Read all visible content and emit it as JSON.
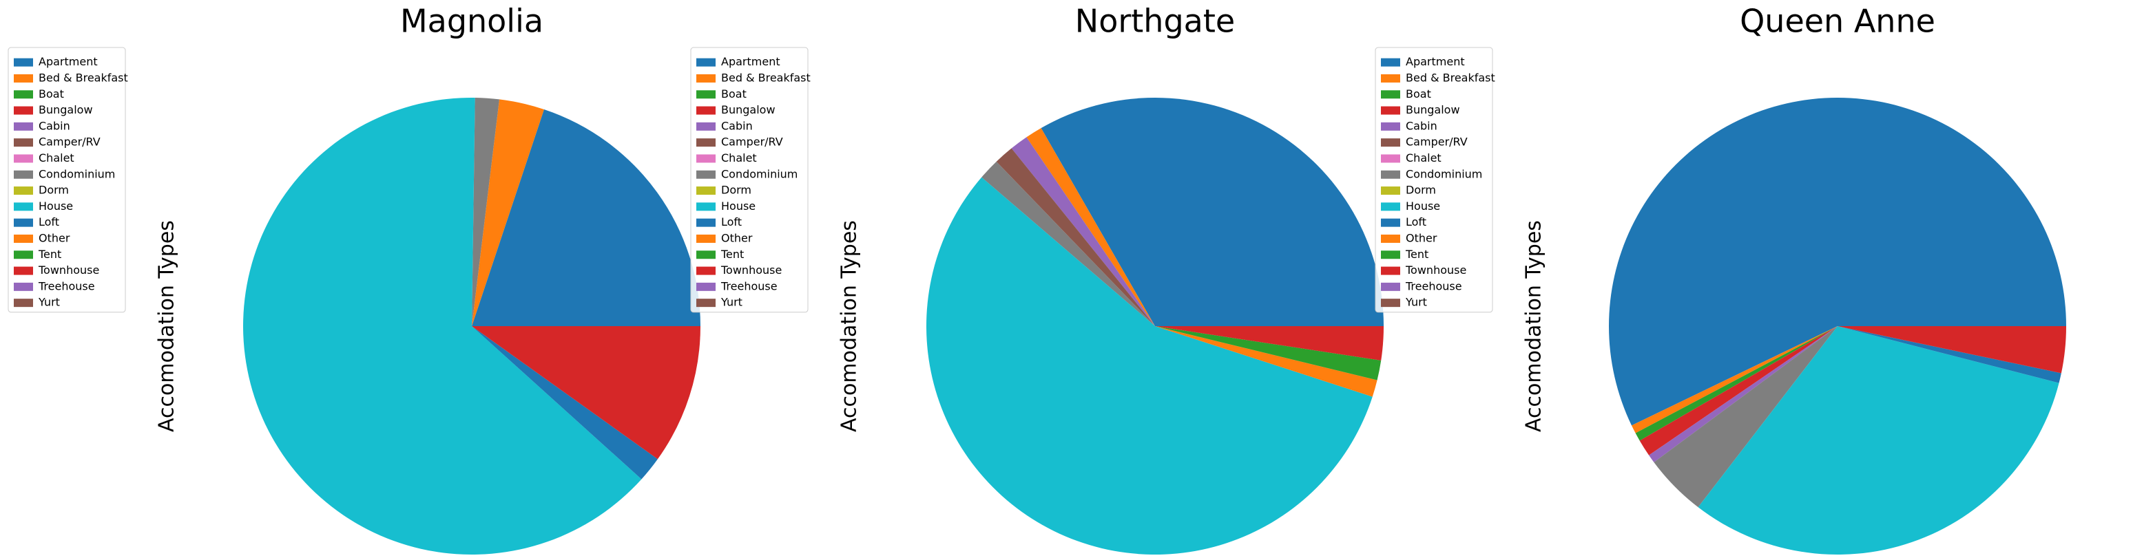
{
  "chart_data": [
    {
      "type": "pie",
      "title": "Magnolia",
      "ylabel": "Accomodation Types",
      "categories": [
        "Apartment",
        "Bed & Breakfast",
        "Boat",
        "Bungalow",
        "Cabin",
        "Camper/RV",
        "Chalet",
        "Condominium",
        "Dorm",
        "House",
        "Loft",
        "Other",
        "Tent",
        "Townhouse",
        "Treehouse",
        "Yurt"
      ],
      "colors": [
        "#1f77b4",
        "#ff7f0e",
        "#2ca02c",
        "#d62728",
        "#9467bd",
        "#8c564b",
        "#e377c2",
        "#7f7f7f",
        "#bcbd22",
        "#17becf",
        "#1f77b4",
        "#ff7f0e",
        "#2ca02c",
        "#d62728",
        "#9467bd",
        "#8c564b"
      ],
      "values": [
        19.9,
        3.2,
        0,
        0,
        0,
        0,
        0,
        1.7,
        0,
        63.6,
        1.8,
        0,
        0,
        9.9,
        0,
        0
      ]
    },
    {
      "type": "pie",
      "title": "Northgate",
      "ylabel": "Accomodation Types",
      "categories": [
        "Apartment",
        "Bed & Breakfast",
        "Boat",
        "Bungalow",
        "Cabin",
        "Camper/RV",
        "Chalet",
        "Condominium",
        "Dorm",
        "House",
        "Loft",
        "Other",
        "Tent",
        "Townhouse",
        "Treehouse",
        "Yurt"
      ],
      "colors": [
        "#1f77b4",
        "#ff7f0e",
        "#2ca02c",
        "#d62728",
        "#9467bd",
        "#8c564b",
        "#e377c2",
        "#7f7f7f",
        "#bcbd22",
        "#17becf",
        "#1f77b4",
        "#ff7f0e",
        "#2ca02c",
        "#d62728",
        "#9467bd",
        "#8c564b"
      ],
      "values": [
        33.3,
        1.2,
        0,
        0,
        1.3,
        1.4,
        0,
        1.5,
        0,
        56.3,
        0,
        1.2,
        1.4,
        2.4,
        0,
        0
      ]
    },
    {
      "type": "pie",
      "title": "Queen Anne",
      "ylabel": "Accomodation Types",
      "categories": [
        "Apartment",
        "Bed & Breakfast",
        "Boat",
        "Bungalow",
        "Cabin",
        "Camper/RV",
        "Chalet",
        "Condominium",
        "Dorm",
        "House",
        "Loft",
        "Other",
        "Tent",
        "Townhouse",
        "Treehouse",
        "Yurt"
      ],
      "colors": [
        "#1f77b4",
        "#ff7f0e",
        "#2ca02c",
        "#d62728",
        "#9467bd",
        "#8c564b",
        "#e377c2",
        "#7f7f7f",
        "#bcbd22",
        "#17becf",
        "#1f77b4",
        "#ff7f0e",
        "#2ca02c",
        "#d62728",
        "#9467bd",
        "#8c564b"
      ],
      "values": [
        57.1,
        0.6,
        0.6,
        1.2,
        0.6,
        0,
        0,
        4.4,
        0,
        31.4,
        0.7,
        0,
        0,
        3.3,
        0,
        0
      ]
    }
  ]
}
